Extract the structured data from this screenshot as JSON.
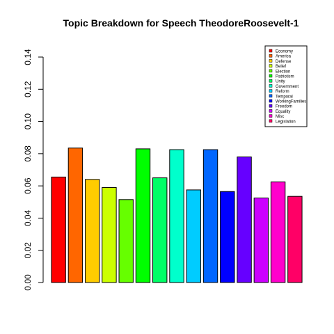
{
  "chart_data": {
    "type": "bar",
    "title": "Topic Breakdown for Speech TheodoreRoosevelt-1",
    "xlabel": "",
    "ylabel": "",
    "ylim": [
      0,
      0.14
    ],
    "yticks": [
      "0.00",
      "0.02",
      "0.04",
      "0.06",
      "0.08",
      "0.10",
      "0.12",
      "0.14"
    ],
    "grid": false,
    "legend_position": "top-right",
    "categories": [
      "Economy",
      "America",
      "Defense",
      "Belief",
      "Election",
      "Patriotism",
      "Unity",
      "Government",
      "Reform",
      "Temporal",
      "WorkingFamilies",
      "Freedom",
      "Equality",
      "Misc",
      "Legislation"
    ],
    "values": [
      0.0655,
      0.0835,
      0.064,
      0.059,
      0.0515,
      0.083,
      0.065,
      0.0825,
      0.0575,
      0.0825,
      0.0565,
      0.078,
      0.0525,
      0.0625,
      0.0535
    ],
    "colors": [
      "#FF0000",
      "#FF6600",
      "#FFCC00",
      "#CCFF00",
      "#66FF00",
      "#00FF00",
      "#00FF66",
      "#00FFCC",
      "#00CCFF",
      "#0066FF",
      "#0000FF",
      "#6600FF",
      "#CC00FF",
      "#FF00CC",
      "#FF0066"
    ]
  }
}
